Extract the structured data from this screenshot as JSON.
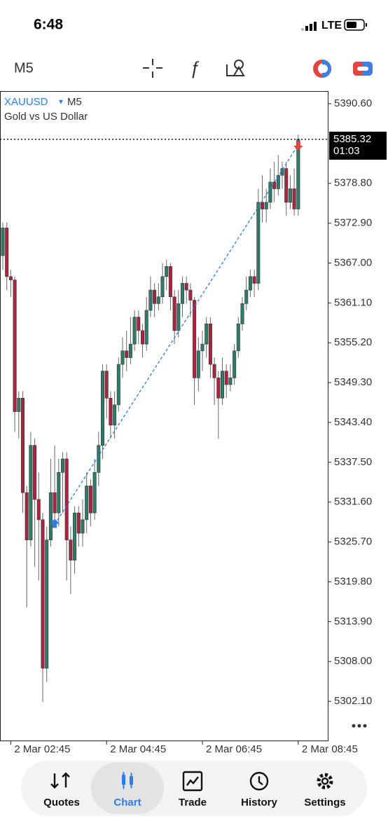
{
  "status_bar": {
    "time": "6:48",
    "network": "LTE"
  },
  "toolbar": {
    "timeframe": "M5"
  },
  "chart_data": {
    "type": "candlestick",
    "symbol": "XAUUSD",
    "timeframe": "M5",
    "description": "Gold vs US Dollar",
    "up_color": "#2f7a68",
    "down_color": "#a8243f",
    "open": [
      5368.1,
      5372.2,
      5365,
      5364.5,
      5345,
      5347,
      5333,
      5326,
      5340,
      5332,
      5329,
      5307,
      5326,
      5333,
      5330,
      5336,
      5338,
      5326,
      5323,
      5330,
      5327,
      5329,
      5334,
      5330,
      5336,
      5340,
      5351,
      5347,
      5343,
      5346,
      5352,
      5354,
      5353,
      5355,
      5359,
      5357,
      5355,
      5360,
      5363,
      5361,
      5362,
      5365,
      5366.5,
      5362,
      5357,
      5361,
      5364,
      5363,
      5361.5,
      5350,
      5354,
      5355,
      5358,
      5352,
      5350,
      5347,
      5351,
      5349,
      5350,
      5354,
      5358,
      5361,
      5363,
      5365,
      5364,
      5376,
      5375,
      5376,
      5379,
      5378,
      5380,
      5381,
      5376,
      5378,
      5375
    ],
    "high": [
      5373,
      5373,
      5366,
      5365,
      5348,
      5348,
      5334,
      5342,
      5341,
      5336,
      5330,
      5328,
      5338,
      5340,
      5338,
      5339,
      5339,
      5328,
      5331,
      5331,
      5332,
      5336,
      5335,
      5338,
      5342,
      5352,
      5352,
      5348,
      5348,
      5353,
      5356,
      5357,
      5359,
      5360,
      5360,
      5358,
      5362,
      5365,
      5364,
      5364,
      5367,
      5367.5,
      5367,
      5363,
      5363,
      5365,
      5365,
      5364,
      5362,
      5356,
      5357,
      5359,
      5359,
      5353,
      5351,
      5353,
      5352,
      5352,
      5355,
      5359,
      5362,
      5365,
      5366,
      5366,
      5378,
      5380,
      5378,
      5381,
      5382,
      5383,
      5382,
      5382,
      5380,
      5381,
      5386
    ],
    "low": [
      5366,
      5363,
      5362,
      5342,
      5341,
      5330,
      5316,
      5325,
      5322,
      5320,
      5302,
      5305,
      5325,
      5328,
      5328,
      5330,
      5320,
      5318,
      5321,
      5325,
      5325,
      5327,
      5328,
      5329,
      5334,
      5338,
      5344,
      5341,
      5341,
      5345,
      5350,
      5351,
      5352,
      5354,
      5355,
      5353,
      5354,
      5359,
      5359,
      5360,
      5361,
      5363,
      5360,
      5355,
      5356,
      5359,
      5361,
      5359,
      5346,
      5348,
      5351,
      5353,
      5350,
      5346,
      5341,
      5346,
      5347,
      5348,
      5349,
      5353,
      5357,
      5360,
      5362,
      5362,
      5363,
      5373,
      5373,
      5375,
      5376,
      5377,
      5378,
      5374,
      5375,
      5374,
      5374
    ],
    "close": [
      5372.2,
      5365,
      5364.5,
      5345,
      5347,
      5333,
      5326,
      5340,
      5332,
      5329,
      5307,
      5326,
      5333,
      5330,
      5336,
      5338,
      5326,
      5323,
      5330,
      5327,
      5329,
      5334,
      5330,
      5336,
      5340,
      5351,
      5347,
      5343,
      5346,
      5352,
      5354,
      5353,
      5355,
      5359,
      5357,
      5355,
      5360,
      5363,
      5361,
      5362,
      5365,
      5366.5,
      5362,
      5357,
      5361,
      5364,
      5363,
      5361.5,
      5350,
      5354,
      5355,
      5358,
      5352,
      5350,
      5347,
      5351,
      5349,
      5350,
      5354,
      5358,
      5361,
      5363,
      5365,
      5364,
      5376,
      5375,
      5376,
      5379,
      5378,
      5380,
      5381,
      5376,
      5378,
      5375,
      5385.32
    ],
    "xlim": [
      -0.7,
      81.4
    ],
    "xticks": [
      {
        "value": 2,
        "label": "2 Mar 02:45"
      },
      {
        "value": 26,
        "label": "2 Mar 04:45"
      },
      {
        "value": 50,
        "label": "2 Mar 06:45"
      },
      {
        "value": 74,
        "label": "2 Mar 08:45"
      }
    ],
    "ylim": [
      5296.3,
      5392.47
    ],
    "yticks": [
      {
        "value": 5390.6,
        "label": "5390.60"
      },
      {
        "value": 5378.8,
        "label": "5378.80"
      },
      {
        "value": 5372.9,
        "label": "5372.90"
      },
      {
        "value": 5367,
        "label": "5367.00"
      },
      {
        "value": 5361.1,
        "label": "5361.10"
      },
      {
        "value": 5355.2,
        "label": "5355.20"
      },
      {
        "value": 5349.3,
        "label": "5349.30"
      },
      {
        "value": 5343.4,
        "label": "5343.40"
      },
      {
        "value": 5337.5,
        "label": "5337.50"
      },
      {
        "value": 5331.6,
        "label": "5331.60"
      },
      {
        "value": 5325.7,
        "label": "5325.70"
      },
      {
        "value": 5319.8,
        "label": "5319.80"
      },
      {
        "value": 5313.9,
        "label": "5313.90"
      },
      {
        "value": 5308,
        "label": "5308.00"
      },
      {
        "value": 5302.1,
        "label": "5302.10"
      }
    ],
    "current_price": {
      "value": 5385.32,
      "label": "5385.32"
    },
    "countdown": "01:03",
    "trendline": {
      "x": [
        13,
        74
      ],
      "y": [
        5328.3,
        5384.5
      ],
      "color": "#2b7de9"
    }
  },
  "nav": {
    "items": [
      "Quotes",
      "Chart",
      "Trade",
      "History",
      "Settings"
    ],
    "active": "Chart"
  }
}
